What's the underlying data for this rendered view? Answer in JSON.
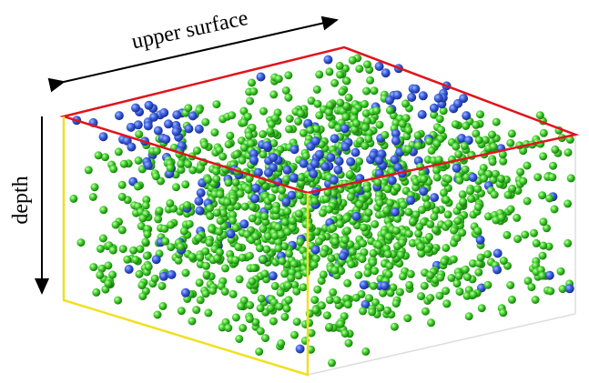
{
  "labels": {
    "top": "upper surface",
    "side": "depth"
  }
}
